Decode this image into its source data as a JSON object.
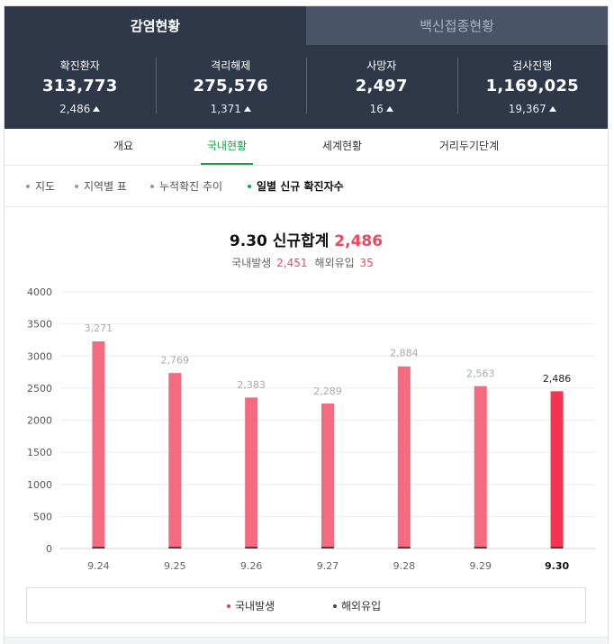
{
  "top_tabs": [
    {
      "label": "감염현황",
      "active": true
    },
    {
      "label": "백신접종현황",
      "active": false
    }
  ],
  "stats": [
    {
      "label": "확진환자",
      "value": "313,773",
      "delta": "2,486"
    },
    {
      "label": "격리해제",
      "value": "275,576",
      "delta": "1,371"
    },
    {
      "label": "사망자",
      "value": "2,497",
      "delta": "16"
    },
    {
      "label": "검사진행",
      "value": "1,169,025",
      "delta": "19,367"
    }
  ],
  "sub_tabs": [
    {
      "label": "개요",
      "active": false
    },
    {
      "label": "국내현황",
      "active": true
    },
    {
      "label": "세계현황",
      "active": false
    },
    {
      "label": "거리두기단계",
      "active": false
    }
  ],
  "filters": [
    {
      "label": "지도",
      "active": false
    },
    {
      "label": "지역별 표",
      "active": false
    },
    {
      "label": "누적확진 추이",
      "active": false
    },
    {
      "label": "일별 신규 확진자수",
      "active": true
    }
  ],
  "summary": {
    "title": "9.30 신규합계",
    "total": "2,486",
    "domestic_label": "국내발생",
    "domestic_value": "2,451",
    "overseas_label": "해외유입",
    "overseas_value": "35"
  },
  "colors": {
    "header_bg": "#2f3849",
    "accent_green": "#15a548",
    "bar_domestic": "#f46b80",
    "bar_highlight": "#f4354f",
    "bar_overseas": "#444444",
    "accent_red": "#f0475e"
  },
  "chart_data": {
    "type": "bar",
    "stacked": true,
    "categories": [
      "9.24",
      "9.25",
      "9.26",
      "9.27",
      "9.28",
      "9.29",
      "9.30"
    ],
    "totals": [
      3271,
      2769,
      2383,
      2289,
      2884,
      2563,
      2486
    ],
    "total_labels": [
      "3,271",
      "2,769",
      "2,383",
      "2,289",
      "2,884",
      "2,563",
      "2,486"
    ],
    "series": [
      {
        "name": "국내발생",
        "values": [
          3228,
          2735,
          2353,
          2260,
          2837,
          2531,
          2451
        ]
      },
      {
        "name": "해외유입",
        "values": [
          43,
          34,
          30,
          29,
          47,
          32,
          35
        ]
      }
    ],
    "highlight_index": 6,
    "ylim": [
      0,
      4000
    ],
    "yticks": [
      0,
      500,
      1000,
      1500,
      2000,
      2500,
      3000,
      3500,
      4000
    ],
    "grid": true,
    "legend_position": "bottom"
  }
}
